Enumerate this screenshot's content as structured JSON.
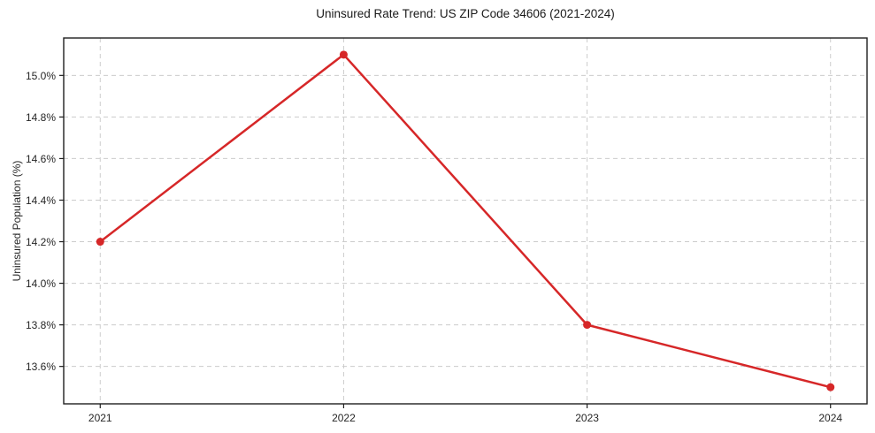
{
  "chart_data": {
    "type": "line",
    "title": "Uninsured Rate Trend: US ZIP Code 34606 (2021-2024)",
    "ylabel": "Uninsured Population (%)",
    "xlabel": "",
    "x": [
      2021,
      2022,
      2023,
      2024
    ],
    "xtick_labels": [
      "2021",
      "2022",
      "2023",
      "2024"
    ],
    "values": [
      14.2,
      15.1,
      13.8,
      13.5
    ],
    "yticks": [
      13.6,
      13.8,
      14.0,
      14.2,
      14.4,
      14.6,
      14.8,
      15.0
    ],
    "ytick_labels": [
      "13.6%",
      "13.8%",
      "14.0%",
      "14.2%",
      "14.4%",
      "14.6%",
      "14.8%",
      "15.0%"
    ],
    "xlim": [
      2020.85,
      2024.15
    ],
    "ylim": [
      13.42,
      15.18
    ],
    "grid": true,
    "grid_style": "dashed",
    "legend": "none",
    "colors": {
      "line": "#d62728",
      "marker": "#d62728",
      "grid": "#cccccc",
      "spine": "#1f1f1f",
      "text": "#262626",
      "background": "#ffffff"
    }
  }
}
